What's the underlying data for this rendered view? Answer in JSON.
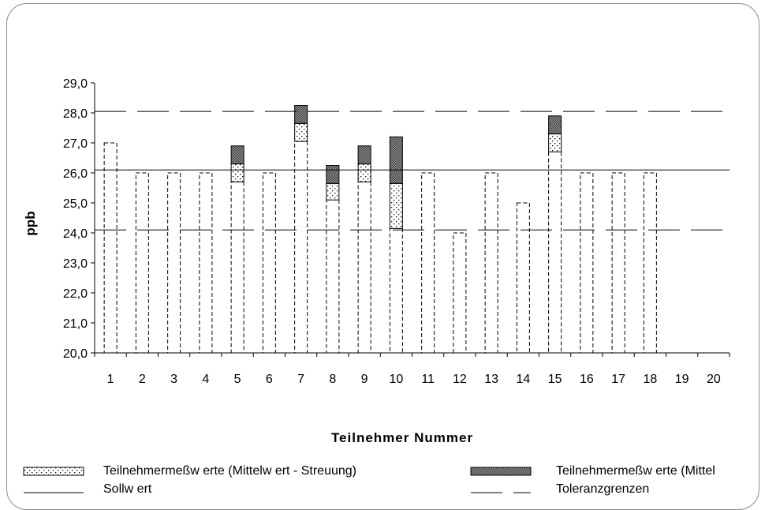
{
  "chart_data": {
    "type": "bar",
    "xlabel": "Teilnehmer Nummer",
    "ylabel": "ppb",
    "ylim": [
      20.0,
      29.0
    ],
    "y_ticks": [
      "20,0",
      "21,0",
      "22,0",
      "23,0",
      "24,0",
      "25,0",
      "26,0",
      "27,0",
      "28,0",
      "29,0"
    ],
    "categories": [
      "1",
      "2",
      "3",
      "4",
      "5",
      "6",
      "7",
      "8",
      "9",
      "10",
      "11",
      "12",
      "13",
      "14",
      "15",
      "16",
      "17",
      "18",
      "19",
      "20"
    ],
    "sollwert": 26.1,
    "toleranzgrenzen": [
      24.1,
      28.05
    ],
    "values": [
      27.0,
      26.0,
      26.0,
      26.0,
      26.3,
      26.0,
      27.65,
      25.65,
      26.3,
      25.65,
      26.0,
      24.0,
      26.0,
      25.0,
      27.3,
      26.0,
      26.0,
      26.0,
      null,
      null
    ],
    "spread_low": [
      null,
      null,
      null,
      null,
      25.7,
      null,
      27.05,
      25.1,
      25.7,
      24.15,
      null,
      null,
      null,
      null,
      26.7,
      null,
      null,
      null,
      null,
      null
    ],
    "spread_high": [
      null,
      null,
      null,
      null,
      26.9,
      null,
      28.25,
      26.25,
      26.9,
      27.2,
      null,
      null,
      null,
      null,
      27.9,
      null,
      null,
      null,
      null,
      null
    ],
    "series": [
      {
        "name": "Teilnehmermeßw erte (Mittelw ert - Streuung)"
      },
      {
        "name": "Teilnehmermeßw erte (Mittel"
      },
      {
        "name": "Sollw ert"
      },
      {
        "name": "Toleranzgrenzen"
      }
    ],
    "grid": false,
    "legend": "bottom"
  }
}
